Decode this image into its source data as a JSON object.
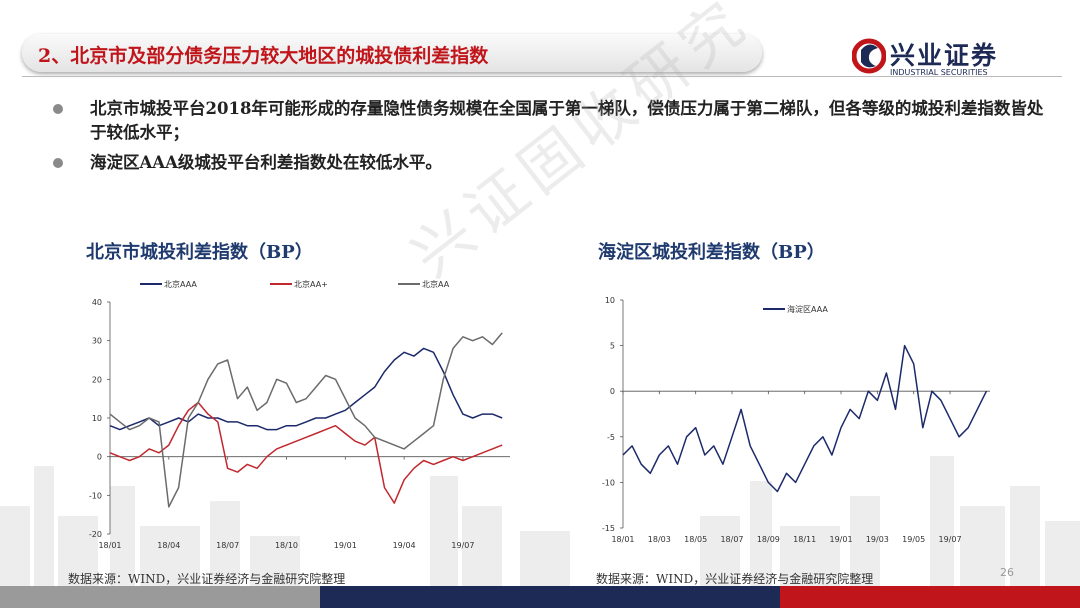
{
  "header": {
    "title": "2、北京市及部分债务压力较大地区的城投债利差指数",
    "logo_cn": "兴业证券",
    "logo_en": "INDUSTRIAL SECURITIES"
  },
  "bullets": [
    "北京市城投平台2018年可能形成的存量隐性债务规模在全国属于第一梯队，偿债压力属于第二梯队，但各等级的城投利差指数皆处于较低水平；",
    "海淀区AAA级城投平台利差指数处在较低水平。"
  ],
  "watermark": "兴证固收研究",
  "colors": {
    "navy": "#1c2a55",
    "red": "#c0161b",
    "gray": "#9a9a9a"
  },
  "chart_data": [
    {
      "type": "line",
      "title": "北京市城投利差指数（BP）",
      "ylim": [
        -20,
        40
      ],
      "yticks": [
        40,
        30,
        20,
        10,
        0,
        -10,
        -20
      ],
      "xticks": [
        "18/01",
        "18/04",
        "18/07",
        "18/10",
        "19/01",
        "19/04",
        "19/07"
      ],
      "xtick_pos": [
        0,
        3,
        6,
        9,
        12,
        15,
        18
      ],
      "xmax": 20.4,
      "legend": "top",
      "series": [
        {
          "name": "北京AAA",
          "color": "#1c2a6b",
          "x": [
            0,
            0.5,
            1,
            1.5,
            2,
            2.5,
            3,
            3.5,
            4,
            4.5,
            5,
            5.5,
            6,
            6.5,
            7,
            7.5,
            8,
            8.5,
            9,
            9.5,
            10,
            10.5,
            11,
            11.5,
            12,
            12.5,
            13,
            13.5,
            14,
            14.5,
            15,
            15.5,
            16,
            16.5,
            17,
            17.5,
            18,
            18.5,
            19,
            19.5,
            20
          ],
          "y": [
            8,
            7,
            8,
            9,
            10,
            8,
            9,
            10,
            9,
            11,
            10,
            10,
            9,
            9,
            8,
            8,
            7,
            7,
            8,
            8,
            9,
            10,
            10,
            11,
            12,
            14,
            16,
            18,
            22,
            25,
            27,
            26,
            28,
            27,
            22,
            16,
            11,
            10,
            11,
            11,
            10
          ]
        },
        {
          "name": "北京AA+",
          "color": "#c0282e",
          "x": [
            0,
            0.5,
            1,
            1.5,
            2,
            2.5,
            3,
            3.5,
            4,
            4.5,
            5,
            5.5,
            6,
            6.5,
            7,
            7.5,
            8,
            8.5,
            9,
            9.5,
            10,
            10.5,
            11,
            11.5,
            12,
            12.5,
            13,
            13.5,
            14,
            14.5,
            15,
            15.5,
            16,
            16.5,
            17,
            17.5,
            18,
            18.5,
            19,
            19.5,
            20
          ],
          "y": [
            1,
            0,
            -1,
            0,
            2,
            1,
            3,
            8,
            12,
            14,
            11,
            9,
            -3,
            -4,
            -2,
            -3,
            0,
            2,
            3,
            4,
            5,
            6,
            7,
            8,
            6,
            4,
            3,
            5,
            -8,
            -12,
            -6,
            -3,
            -1,
            -2,
            -1,
            0,
            -1,
            0,
            1,
            2,
            3
          ]
        },
        {
          "name": "北京AA",
          "color": "#6b6b6b",
          "x": [
            0,
            0.5,
            1,
            1.5,
            2,
            2.5,
            3,
            3.5,
            4,
            4.5,
            5,
            5.5,
            6,
            6.5,
            7,
            7.5,
            8,
            8.5,
            9,
            9.5,
            10,
            10.5,
            11,
            11.5,
            12,
            12.5,
            13,
            13.5,
            14,
            14.5,
            15,
            15.5,
            16,
            16.5,
            17,
            17.5,
            18,
            18.5,
            19,
            19.5,
            20
          ],
          "y": [
            11,
            9,
            7,
            8,
            10,
            9,
            -13,
            -8,
            10,
            14,
            20,
            24,
            25,
            15,
            18,
            12,
            14,
            20,
            19,
            14,
            15,
            18,
            21,
            20,
            15,
            10,
            8,
            5,
            4,
            3,
            2,
            4,
            6,
            8,
            20,
            28,
            31,
            30,
            31,
            29,
            32
          ]
        }
      ]
    },
    {
      "type": "line",
      "title": "海淀区城投利差指数（BP）",
      "ylim": [
        -15,
        10
      ],
      "yticks": [
        10,
        5,
        0,
        -5,
        -10,
        -15
      ],
      "xticks": [
        "18/01",
        "18/03",
        "18/05",
        "18/07",
        "18/09",
        "18/11",
        "19/01",
        "19/03",
        "19/05",
        "19/07"
      ],
      "xtick_pos": [
        0,
        2,
        4,
        6,
        8,
        10,
        12,
        14,
        16,
        18
      ],
      "xmax": 20.2,
      "legend": "top-right",
      "series": [
        {
          "name": "海淀区AAA",
          "color": "#1c2a6b",
          "x": [
            0,
            0.5,
            1,
            1.5,
            2,
            2.5,
            3,
            3.5,
            4,
            4.5,
            5,
            5.5,
            6,
            6.5,
            7,
            7.5,
            8,
            8.5,
            9,
            9.5,
            10,
            10.5,
            11,
            11.5,
            12,
            12.5,
            13,
            13.5,
            14,
            14.5,
            15,
            15.5,
            16,
            16.5,
            17,
            17.5,
            18,
            18.5,
            19,
            19.5,
            20
          ],
          "y": [
            -7,
            -6,
            -8,
            -9,
            -7,
            -6,
            -8,
            -5,
            -4,
            -7,
            -6,
            -8,
            -5,
            -2,
            -6,
            -8,
            -10,
            -11,
            -9,
            -10,
            -8,
            -6,
            -5,
            -7,
            -4,
            -2,
            -3,
            0,
            -1,
            2,
            -2,
            5,
            3,
            -4,
            0,
            -1,
            -3,
            -5,
            -4,
            -2,
            0
          ]
        }
      ]
    }
  ],
  "sources": [
    "数据来源：WIND，兴业证券经济与金融研究院整理",
    "数据来源：WIND，兴业证券经济与金融研究院整理"
  ],
  "page_number": "26"
}
